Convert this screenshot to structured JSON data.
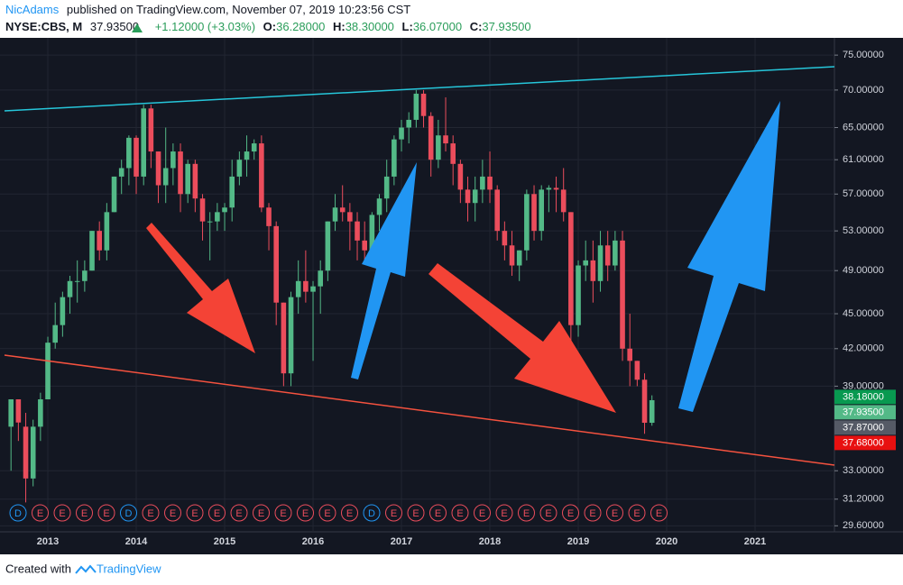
{
  "header": {
    "author": "NicAdams",
    "published": "published on TradingView.com, November 07, 2019 10:23:56 CST",
    "symbol": "NYSE:CBS, M",
    "price": "37.93500",
    "change": "+1.12000 (+3.03%)",
    "ohlc": [
      {
        "label": "O:",
        "value": "36.28000"
      },
      {
        "label": "H:",
        "value": "38.30000"
      },
      {
        "label": "L:",
        "value": "36.07000"
      },
      {
        "label": "C:",
        "value": "37.93500"
      }
    ]
  },
  "chart_data": {
    "type": "candlestick",
    "log_scale": true,
    "grid": true,
    "up_color": "#53b987",
    "down_color": "#eb4d5c",
    "x": [
      "2012-08",
      "2012-09",
      "2012-10",
      "2012-11",
      "2012-12",
      "2013-01",
      "2013-02",
      "2013-03",
      "2013-04",
      "2013-05",
      "2013-06",
      "2013-07",
      "2013-08",
      "2013-09",
      "2013-10",
      "2013-11",
      "2013-12",
      "2014-01",
      "2014-02",
      "2014-03",
      "2014-04",
      "2014-05",
      "2014-06",
      "2014-07",
      "2014-08",
      "2014-09",
      "2014-10",
      "2014-11",
      "2014-12",
      "2015-01",
      "2015-02",
      "2015-03",
      "2015-04",
      "2015-05",
      "2015-06",
      "2015-07",
      "2015-08",
      "2015-09",
      "2015-10",
      "2015-11",
      "2015-12",
      "2016-01",
      "2016-02",
      "2016-03",
      "2016-04",
      "2016-05",
      "2016-06",
      "2016-07",
      "2016-08",
      "2016-09",
      "2016-10",
      "2016-11",
      "2016-12",
      "2017-01",
      "2017-02",
      "2017-03",
      "2017-04",
      "2017-05",
      "2017-06",
      "2017-07",
      "2017-08",
      "2017-09",
      "2017-10",
      "2017-11",
      "2017-12",
      "2018-01",
      "2018-02",
      "2018-03",
      "2018-04",
      "2018-05",
      "2018-06",
      "2018-07",
      "2018-08",
      "2018-09",
      "2018-10",
      "2018-11",
      "2018-12",
      "2019-01",
      "2019-02",
      "2019-03",
      "2019-04",
      "2019-05",
      "2019-06",
      "2019-07",
      "2019-08",
      "2019-09",
      "2019-10",
      "2019-11"
    ],
    "open": [
      36,
      38,
      36,
      32.5,
      36,
      38,
      42.5,
      44,
      46.5,
      48,
      48,
      49,
      53,
      51,
      55,
      59,
      60,
      63.7,
      59,
      67.5,
      62,
      58,
      60,
      62,
      57,
      60.5,
      56.5,
      54,
      54,
      55,
      55.5,
      59,
      61,
      62,
      63,
      55.5,
      53.5,
      46,
      40,
      46.5,
      48,
      47,
      47.5,
      49,
      54,
      55.5,
      55,
      54,
      52,
      51,
      54.7,
      56.5,
      59,
      63.5,
      65,
      66,
      69.5,
      66.5,
      61,
      64,
      63,
      60.5,
      57.5,
      56,
      57.5,
      59,
      57.5,
      53,
      51.5,
      49.5,
      51,
      57,
      53,
      57.5,
      57.7,
      57.5,
      55,
      44,
      49.5,
      50,
      48,
      51.5,
      49.5,
      52,
      42,
      41,
      39.5,
      36.28
    ],
    "high": [
      38,
      38,
      37,
      36.5,
      38.5,
      43,
      46,
      47,
      48.5,
      50,
      50,
      53,
      54,
      56,
      59,
      61,
      64,
      64,
      68,
      68,
      62,
      65,
      63,
      63,
      61,
      61,
      57,
      55,
      56,
      56,
      61,
      62,
      64,
      63.5,
      64,
      56,
      54,
      46,
      47,
      50,
      51,
      48,
      50,
      54,
      57,
      58,
      56,
      55,
      54,
      55,
      57,
      61,
      64,
      66,
      67,
      70,
      70,
      67,
      66,
      69,
      64,
      61,
      59,
      59,
      61,
      62,
      58,
      54,
      53,
      51,
      57.5,
      58,
      58,
      58,
      59,
      60,
      55,
      50,
      52,
      52,
      53,
      53,
      53,
      53,
      45,
      41,
      40,
      38.3
    ],
    "low": [
      33,
      35,
      31,
      32,
      35,
      38,
      42,
      43,
      45,
      46,
      47,
      49,
      50,
      50,
      55,
      57,
      58,
      57,
      58,
      60,
      56,
      56,
      58,
      55,
      56,
      55,
      52,
      50,
      53,
      53,
      54,
      58,
      59,
      61,
      55,
      51,
      44,
      39,
      39,
      45,
      46,
      41,
      45,
      48,
      53,
      54,
      51,
      50,
      50,
      50,
      53,
      55,
      58,
      62,
      63,
      65,
      65,
      59,
      60,
      62,
      58,
      56,
      54,
      54,
      56,
      56,
      52,
      50,
      48.5,
      48,
      50,
      52,
      52,
      55,
      55,
      54,
      42,
      43,
      48,
      46,
      47,
      48,
      49,
      41,
      39,
      39,
      35.5,
      36.07
    ],
    "close": [
      38,
      36.3,
      32.5,
      36,
      38,
      42.5,
      44,
      46.5,
      48,
      48,
      49,
      53,
      51,
      55,
      59,
      60,
      63.7,
      59,
      67.5,
      62,
      58,
      60,
      62,
      57,
      60.5,
      56.5,
      54,
      54,
      55,
      55.5,
      59,
      61,
      62,
      63,
      55.5,
      53.5,
      46,
      40,
      46.5,
      48,
      47,
      47.5,
      49,
      54,
      55.5,
      55,
      54,
      52,
      51,
      54.7,
      56.5,
      59,
      63.5,
      65,
      66,
      69.5,
      66.5,
      61,
      64,
      63,
      60.5,
      57.5,
      56,
      57.5,
      59,
      57.5,
      53,
      51.5,
      49.5,
      51,
      57,
      53,
      57.5,
      57.7,
      57.5,
      55,
      44,
      49.5,
      50,
      48,
      51.5,
      49.5,
      52,
      42,
      41,
      39.5,
      36.28,
      37.935
    ],
    "ylim": [
      29.25,
      77.6
    ],
    "yticks": [
      {
        "value": 75,
        "label": "75.00000"
      },
      {
        "value": 70,
        "label": "70.00000"
      },
      {
        "value": 65,
        "label": "65.00000"
      },
      {
        "value": 61,
        "label": "61.00000"
      },
      {
        "value": 57,
        "label": "57.00000"
      },
      {
        "value": 53,
        "label": "53.00000"
      },
      {
        "value": 49,
        "label": "49.00000"
      },
      {
        "value": 45,
        "label": "45.00000"
      },
      {
        "value": 42,
        "label": "42.00000"
      },
      {
        "value": 39,
        "label": "39.00000"
      },
      {
        "value": 33,
        "label": "33.00000"
      },
      {
        "value": 31.2,
        "label": "31.20000"
      },
      {
        "value": 29.6,
        "label": "29.60000"
      }
    ],
    "xticks": [
      {
        "value": "2013-01",
        "label": "2013"
      },
      {
        "value": "2014-01",
        "label": "2014"
      },
      {
        "value": "2015-01",
        "label": "2015"
      },
      {
        "value": "2016-01",
        "label": "2016"
      },
      {
        "value": "2017-01",
        "label": "2017"
      },
      {
        "value": "2018-01",
        "label": "2018"
      },
      {
        "value": "2019-01",
        "label": "2019"
      },
      {
        "value": "2020-01",
        "label": "2020"
      },
      {
        "value": "2021-01",
        "label": "2021"
      }
    ],
    "price_labels": [
      {
        "value": 38.18,
        "label": "38.18000",
        "color": "#089950"
      },
      {
        "value": 37.935,
        "label": "37.93500",
        "color": "#53b987"
      },
      {
        "value": 37.87,
        "label": "37.87000",
        "color": "#555a66"
      },
      {
        "value": 37.68,
        "label": "37.68000",
        "color": "#e81010"
      }
    ],
    "events": [
      "D",
      "E",
      "E",
      "E",
      "E",
      "D",
      "E",
      "E",
      "E",
      "E",
      "E",
      "E",
      "E",
      "E",
      "E",
      "E",
      "D",
      "E",
      "E",
      "E",
      "E",
      "E",
      "E",
      "E",
      "E",
      "E",
      "E",
      "E",
      "E",
      "E"
    ]
  },
  "footer": {
    "created": "Created with",
    "brand": "TradingView"
  }
}
